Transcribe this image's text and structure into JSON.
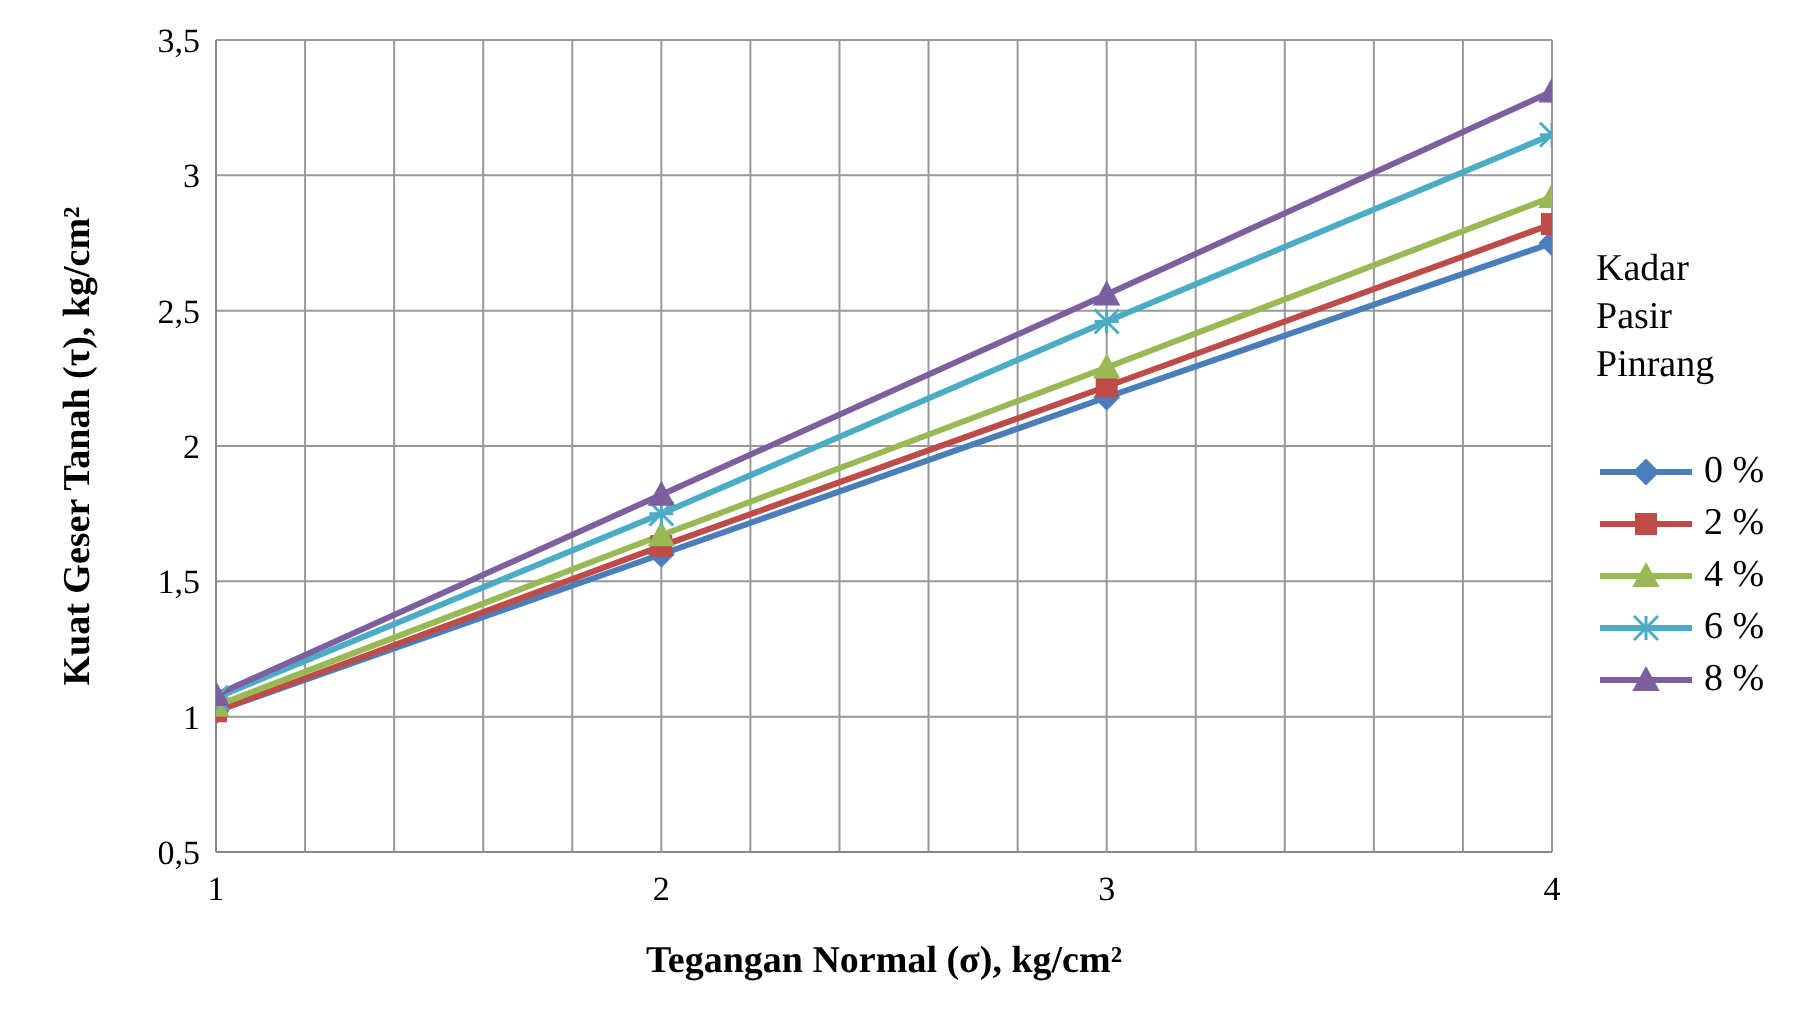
{
  "chart_data": {
    "type": "line",
    "xlabel": "Tegangan Normal (σ), kg/cm²",
    "ylabel": "Kuat Geser Tanah (τ), kg/cm²",
    "legend_title": "Kadar Pasir Pinrang",
    "x": [
      1,
      2,
      3,
      4
    ],
    "series": [
      {
        "name": "0 %",
        "color": "#4a7ebb",
        "values": [
          1.02,
          1.6,
          2.18,
          2.75
        ],
        "marker": "diamond"
      },
      {
        "name": "2 %",
        "color": "#be4b48",
        "values": [
          1.02,
          1.63,
          2.22,
          2.82
        ],
        "marker": "square"
      },
      {
        "name": "4 %",
        "color": "#98b954",
        "values": [
          1.04,
          1.67,
          2.29,
          2.92
        ],
        "marker": "triangle"
      },
      {
        "name": "6 %",
        "color": "#4bacc6",
        "values": [
          1.07,
          1.75,
          2.46,
          3.15
        ],
        "marker": "cross"
      },
      {
        "name": "8 %",
        "color": "#7d5fa0",
        "values": [
          1.08,
          1.82,
          2.56,
          3.31
        ],
        "marker": "triangle"
      }
    ],
    "xlim": [
      1,
      4
    ],
    "xticks": [
      1,
      {
        "value": 1.2,
        "label": null
      },
      {
        "value": 1.4,
        "label": null
      },
      {
        "value": 1.6,
        "label": null
      },
      {
        "value": 1.8,
        "label": null
      },
      2,
      {
        "value": 2.2,
        "label": null
      },
      {
        "value": 2.4,
        "label": null
      },
      {
        "value": 2.6,
        "label": null
      },
      {
        "value": 2.8,
        "label": null
      },
      3,
      {
        "value": 3.2,
        "label": null
      },
      {
        "value": 3.4,
        "label": null
      },
      {
        "value": 3.6,
        "label": null
      },
      {
        "value": 3.8,
        "label": null
      },
      4
    ],
    "ylim": [
      0.5,
      3.5
    ],
    "yticks": [
      {
        "value": 0.5,
        "label": "0,5"
      },
      1,
      {
        "value": 1.5,
        "label": "1,5"
      },
      2,
      {
        "value": 2.5,
        "label": "2,5"
      },
      3,
      {
        "value": 3.5,
        "label": "3,5"
      }
    ],
    "grid": true,
    "legend": "right"
  }
}
